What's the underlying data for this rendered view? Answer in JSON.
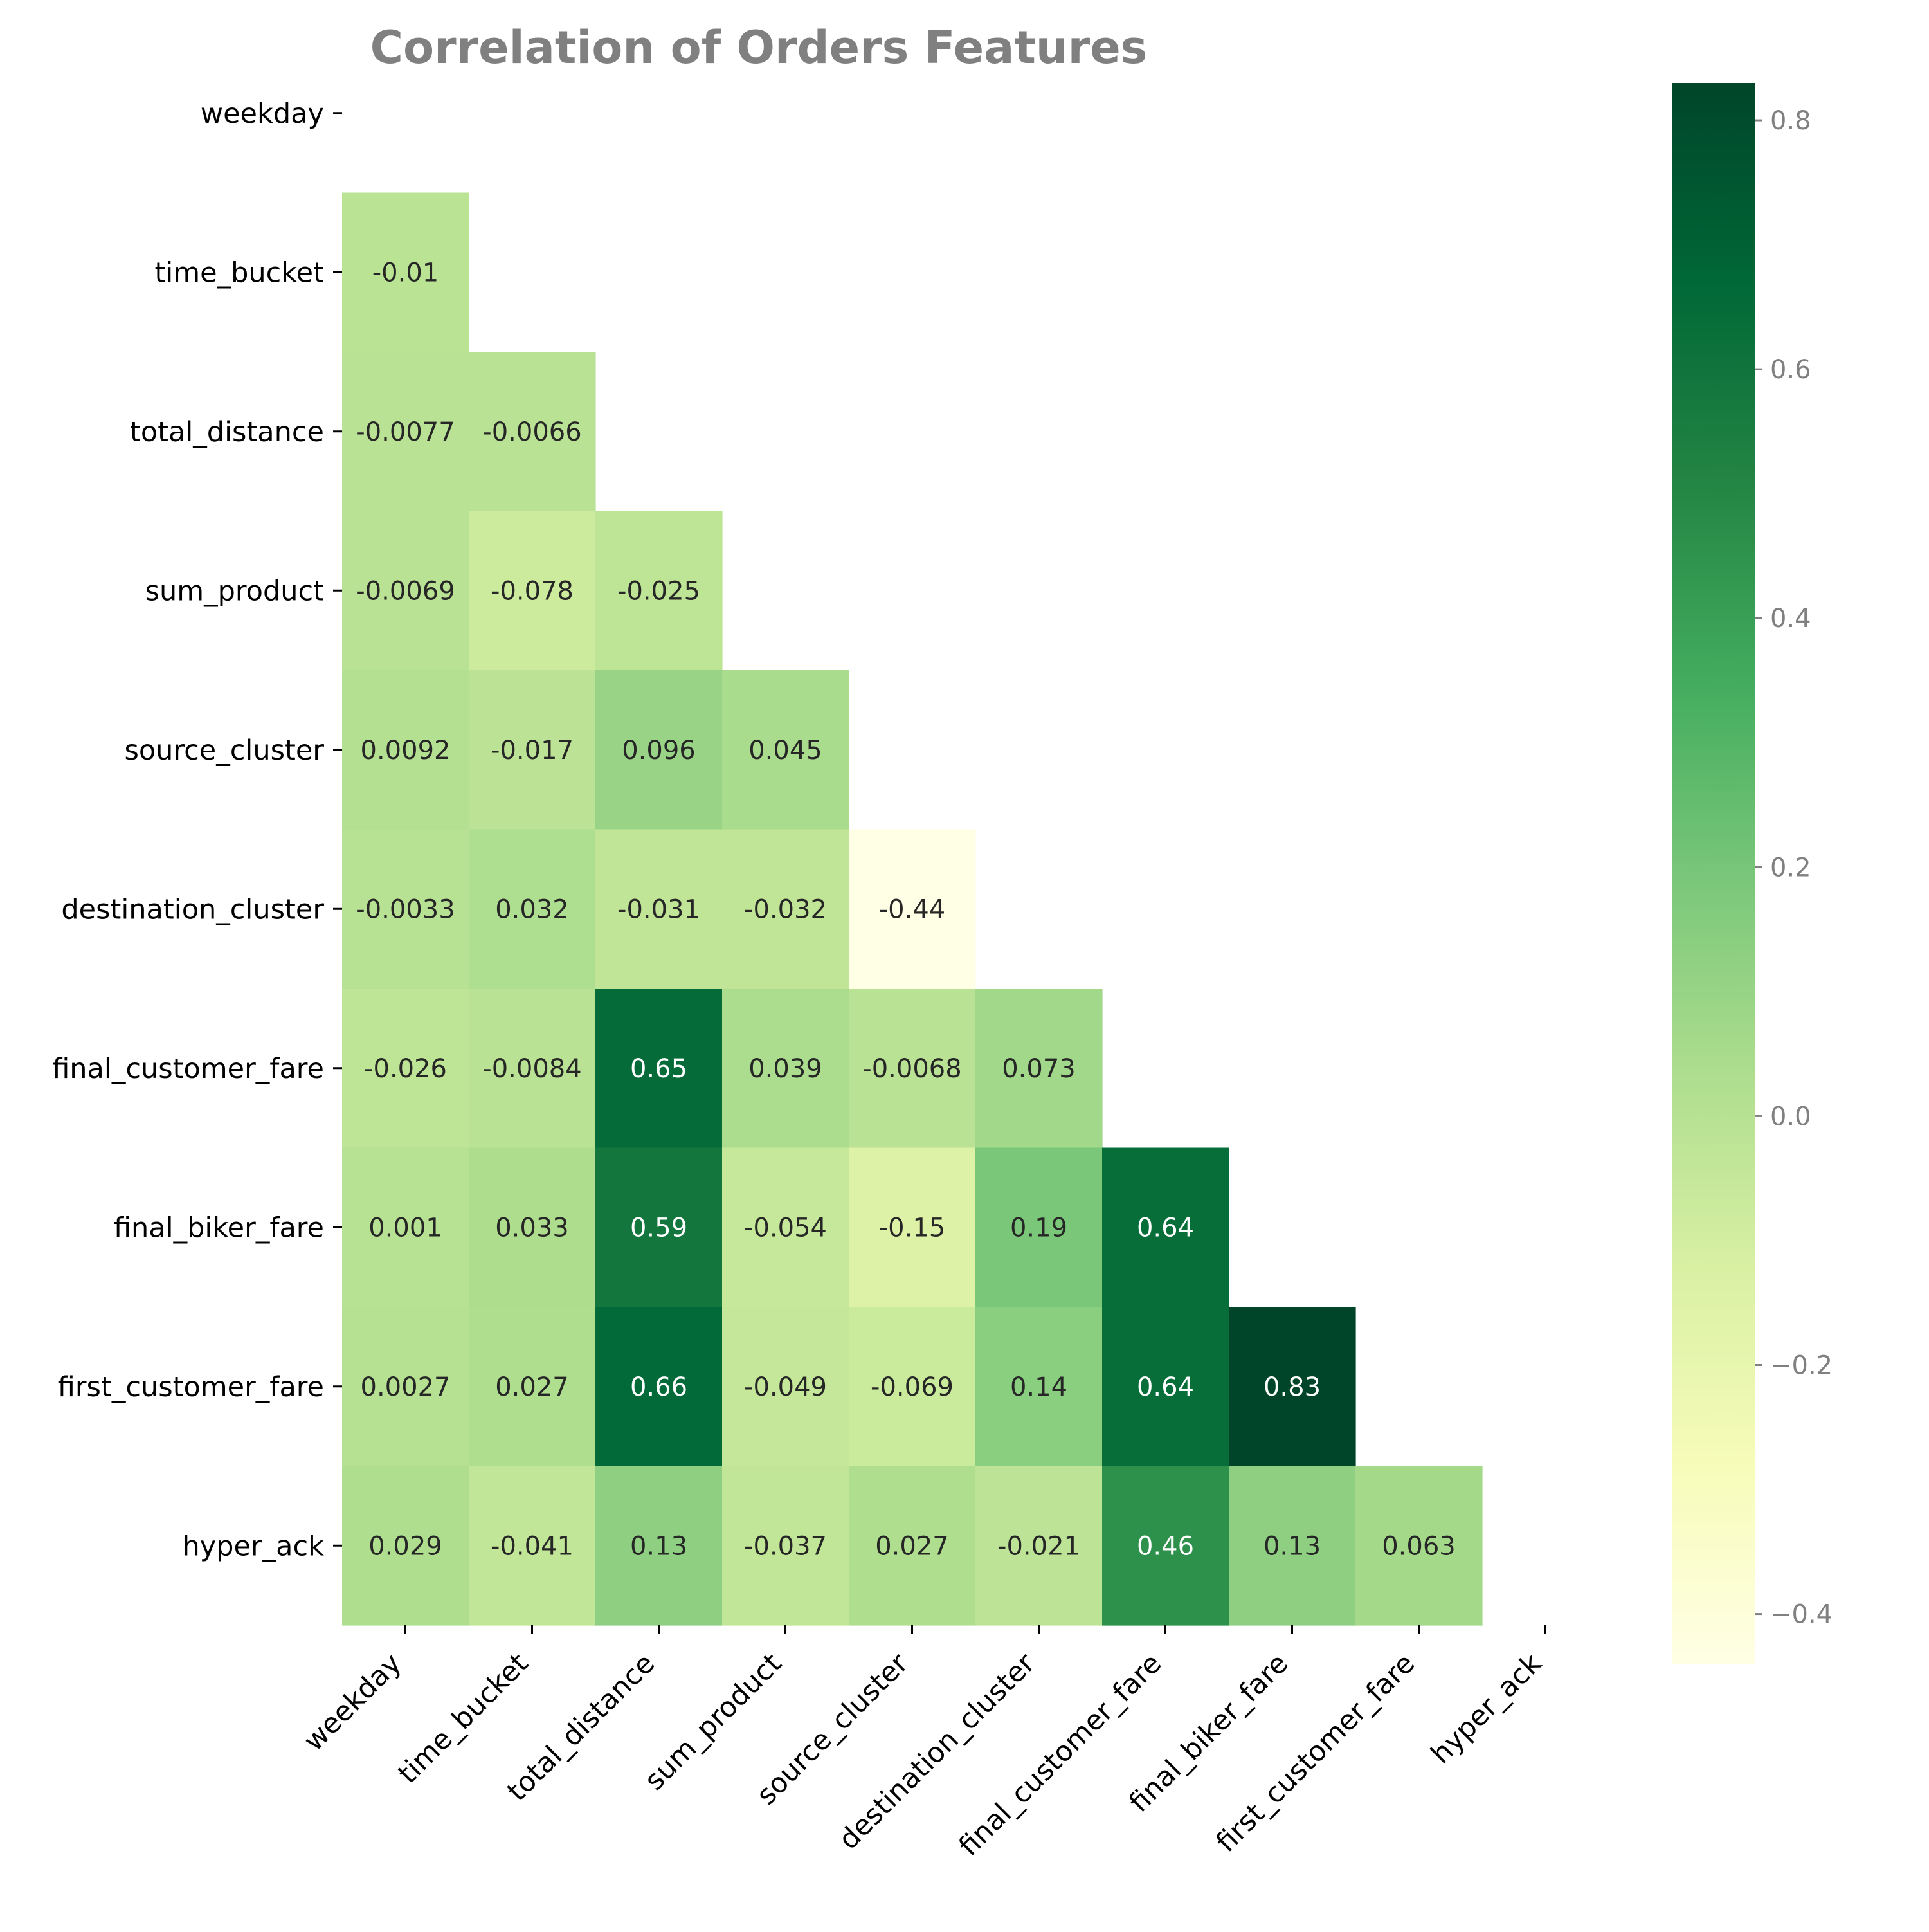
{
  "chart_data": {
    "type": "heatmap",
    "title": "Correlation of Orders Features",
    "xlabel": "",
    "ylabel": "",
    "mask": "upper-triangle-including-diagonal",
    "colormap": "YlGn",
    "rows": [
      "weekday",
      "time_bucket",
      "total_distance",
      "sum_product",
      "source_cluster",
      "destination_cluster",
      "final_customer_fare",
      "final_biker_fare",
      "first_customer_fare",
      "hyper_ack"
    ],
    "columns": [
      "weekday",
      "time_bucket",
      "total_distance",
      "sum_product",
      "source_cluster",
      "destination_cluster",
      "final_customer_fare",
      "final_biker_fare",
      "first_customer_fare",
      "hyper_ack"
    ],
    "values": [
      [],
      [
        -0.01
      ],
      [
        -0.0077,
        -0.0066
      ],
      [
        -0.0069,
        -0.078,
        -0.025
      ],
      [
        0.0092,
        -0.017,
        0.096,
        0.045
      ],
      [
        -0.0033,
        0.032,
        -0.031,
        -0.032,
        -0.44
      ],
      [
        -0.026,
        -0.0084,
        0.65,
        0.039,
        -0.0068,
        0.073
      ],
      [
        0.001,
        0.033,
        0.59,
        -0.054,
        -0.15,
        0.19,
        0.64
      ],
      [
        0.0027,
        0.027,
        0.66,
        -0.049,
        -0.069,
        0.14,
        0.64,
        0.83
      ],
      [
        0.029,
        -0.041,
        0.13,
        -0.037,
        0.027,
        -0.021,
        0.46,
        0.13,
        0.063
      ]
    ],
    "labels": [
      [],
      [
        "-0.01"
      ],
      [
        "-0.0077",
        "-0.0066"
      ],
      [
        "-0.0069",
        "-0.078",
        "-0.025"
      ],
      [
        "0.0092",
        "-0.017",
        "0.096",
        "0.045"
      ],
      [
        "-0.0033",
        "0.032",
        "-0.031",
        "-0.032",
        "-0.44"
      ],
      [
        "-0.026",
        "-0.0084",
        "0.65",
        "0.039",
        "-0.0068",
        "0.073"
      ],
      [
        "0.001",
        "0.033",
        "0.59",
        "-0.054",
        "-0.15",
        "0.19",
        "0.64"
      ],
      [
        "0.0027",
        "0.027",
        "0.66",
        "-0.049",
        "-0.069",
        "0.14",
        "0.64",
        "0.83"
      ],
      [
        "0.029",
        "-0.041",
        "0.13",
        "-0.037",
        "0.027",
        "-0.021",
        "0.46",
        "0.13",
        "0.063"
      ]
    ],
    "colorbar": {
      "range": [
        -0.44,
        0.83
      ],
      "ticks": [
        -0.4,
        -0.2,
        0.0,
        0.2,
        0.4,
        0.6,
        0.8
      ],
      "tick_labels": [
        "−0.4",
        "−0.2",
        "0.0",
        "0.2",
        "0.4",
        "0.6",
        "0.8"
      ],
      "color_stops": [
        "#ffffe5",
        "#f7fcb9",
        "#d9f0a3",
        "#addd8e",
        "#78c679",
        "#41ab5d",
        "#238443",
        "#006837",
        "#004529"
      ]
    },
    "grid": false,
    "colors": {
      "title": "#808080",
      "tick_label": "#000000",
      "colorbar_tick_label": "#808080",
      "annotation_dark": "#262626",
      "annotation_light": "#ffffff"
    }
  }
}
